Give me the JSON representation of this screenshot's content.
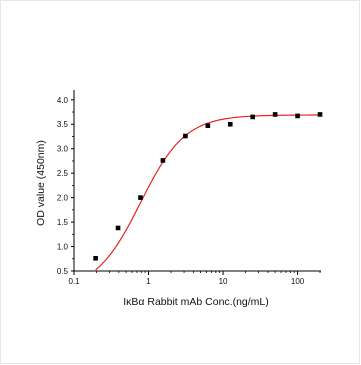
{
  "chart_data": {
    "type": "scatter",
    "xlabel": "IκBα Rabbit mAb Conc.(ng/mL)",
    "ylabel": "OD value (450nm)",
    "xscale": "log",
    "xlim": [
      0.1,
      200
    ],
    "ylim": [
      0.5,
      4.2
    ],
    "x_tick_labels": [
      "0.1",
      "1",
      "10",
      "100"
    ],
    "x_ticks": [
      0.1,
      1,
      10,
      100
    ],
    "y_tick_labels": [
      "0.5",
      "1.0",
      "1.5",
      "2.0",
      "2.5",
      "3.0",
      "3.5",
      "4.0"
    ],
    "y_ticks": [
      0.5,
      1.0,
      1.5,
      2.0,
      2.5,
      3.0,
      3.5,
      4.0
    ],
    "grid": false,
    "legend": "none",
    "points_color": "#000000",
    "fit_color": "#e8231f",
    "series": [
      {
        "x": [
          0.195,
          0.39,
          0.78,
          1.56,
          3.125,
          6.25,
          12.5,
          25,
          50,
          100,
          200
        ],
        "y": [
          0.76,
          1.38,
          2.0,
          2.76,
          3.26,
          3.47,
          3.5,
          3.65,
          3.7,
          3.67,
          3.7
        ]
      }
    ],
    "fit": {
      "bottom": 0.1,
      "top": 3.69,
      "ec50": 0.78,
      "hill": 1.45
    }
  }
}
